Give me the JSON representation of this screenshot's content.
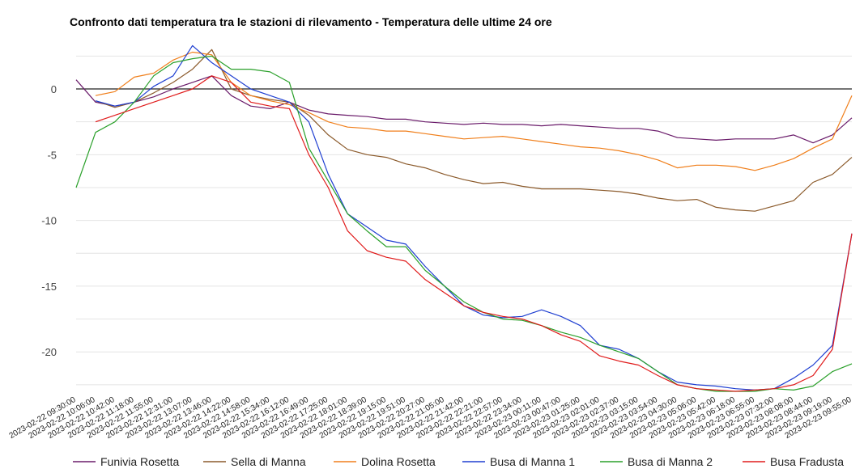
{
  "chart_data": {
    "type": "line",
    "title": "Confronto dati temperatura tra le stazioni di rilevamento - Temperatura delle ultime 24 ore",
    "ylim": [
      -23,
      4
    ],
    "yticks": [
      0,
      -5,
      -10,
      -15,
      -20
    ],
    "grid": true,
    "legend_position": "bottom",
    "x_labels": [
      "2023-02-22 09:30:00",
      "2023-02-22 10:06:00",
      "2023-02-22 10:42:00",
      "2023-02-22 11:18:00",
      "2023-02-22 11:55:00",
      "2023-02-22 12:31:00",
      "2023-02-22 13:07:00",
      "2023-02-22 13:46:00",
      "2023-02-22 14:22:00",
      "2023-02-22 14:58:00",
      "2023-02-22 15:34:00",
      "2023-02-22 16:12:00",
      "2023-02-22 16:49:00",
      "2023-02-22 17:25:00",
      "2023-02-22 18:01:00",
      "2023-02-22 18:39:00",
      "2023-02-22 19:15:00",
      "2023-02-22 19:51:00",
      "2023-02-22 20:27:00",
      "2023-02-22 21:05:00",
      "2023-02-22 21:42:00",
      "2023-02-22 22:21:00",
      "2023-02-22 22:57:00",
      "2023-02-22 23:34:00",
      "2023-02-23 00:11:00",
      "2023-02-23 00:47:00",
      "2023-02-23 01:25:00",
      "2023-02-23 02:01:00",
      "2023-02-23 02:37:00",
      "2023-02-23 03:15:00",
      "2023-02-23 03:54:00",
      "2023-02-23 04:30:00",
      "2023-02-23 05:06:00",
      "2023-02-23 05:42:00",
      "2023-02-23 06:18:00",
      "2023-02-23 06:55:00",
      "2023-02-23 07:32:00",
      "2023-02-23 08:08:00",
      "2023-02-23 08:44:00",
      "2023-02-23 09:19:00",
      "2023-02-23 09:55:00"
    ],
    "series": [
      {
        "name": "Funivia Rosetta",
        "color": "#6a1b6a",
        "values": [
          0.7,
          -1.0,
          -1.3,
          -1.0,
          -0.6,
          0.0,
          0.5,
          1.0,
          -0.5,
          -1.3,
          -1.5,
          -1.0,
          -1.6,
          -1.9,
          -2.0,
          -2.1,
          -2.3,
          -2.3,
          -2.5,
          -2.6,
          -2.7,
          -2.6,
          -2.7,
          -2.7,
          -2.8,
          -2.7,
          -2.8,
          -2.9,
          -3.0,
          -3.0,
          -3.2,
          -3.7,
          -3.8,
          -3.9,
          -3.8,
          -3.8,
          -3.8,
          -3.5,
          -4.1,
          -3.5,
          -2.2
        ]
      },
      {
        "name": "Sella di Manna",
        "color": "#8b5a2b",
        "values": [
          null,
          -0.9,
          -1.4,
          -1.0,
          -0.3,
          0.5,
          1.5,
          3.0,
          0.0,
          -0.5,
          -0.8,
          -1.0,
          -2.0,
          -3.5,
          -4.6,
          -5.0,
          -5.2,
          -5.7,
          -6.0,
          -6.5,
          -6.9,
          -7.2,
          -7.1,
          -7.4,
          -7.6,
          -7.6,
          -7.6,
          -7.7,
          -7.8,
          -8.0,
          -8.3,
          -8.5,
          -8.4,
          -9.0,
          -9.2,
          -9.3,
          -8.9,
          -8.5,
          -7.1,
          -6.5,
          -5.2
        ]
      },
      {
        "name": "Dolina Rosetta",
        "color": "#f07f1b",
        "values": [
          null,
          -0.5,
          -0.2,
          0.9,
          1.2,
          2.2,
          2.8,
          2.6,
          0.5,
          -0.5,
          -0.9,
          -1.2,
          -1.8,
          -2.5,
          -2.9,
          -3.0,
          -3.2,
          -3.2,
          -3.4,
          -3.6,
          -3.8,
          -3.7,
          -3.6,
          -3.8,
          -4.0,
          -4.2,
          -4.4,
          -4.5,
          -4.7,
          -5.0,
          -5.4,
          -6.0,
          -5.8,
          -5.8,
          -5.9,
          -6.2,
          -5.8,
          -5.3,
          -4.5,
          -3.8,
          -0.5
        ]
      },
      {
        "name": "Busa di Manna 1",
        "color": "#1f3fd1",
        "values": [
          null,
          -0.9,
          -1.3,
          -1.0,
          0.2,
          1.0,
          3.3,
          2.0,
          1.0,
          0.0,
          -0.5,
          -1.0,
          -2.5,
          -6.5,
          -9.5,
          -10.5,
          -11.5,
          -11.8,
          -13.5,
          -15.0,
          -16.5,
          -17.2,
          -17.4,
          -17.3,
          -16.8,
          -17.3,
          -18.0,
          -19.5,
          -19.8,
          -20.5,
          -21.5,
          -22.3,
          -22.5,
          -22.6,
          -22.8,
          -22.9,
          -22.8,
          -22.0,
          -21.0,
          -19.5,
          -11.0
        ]
      },
      {
        "name": "Busa di Manna 2",
        "color": "#2aa02a",
        "values": [
          -7.5,
          -3.3,
          -2.5,
          -1.0,
          1.0,
          2.0,
          2.3,
          2.5,
          1.5,
          1.5,
          1.3,
          0.5,
          -4.5,
          -7.0,
          -9.5,
          -10.8,
          -12.0,
          -12.0,
          -13.8,
          -15.0,
          -16.2,
          -17.0,
          -17.5,
          -17.6,
          -18.0,
          -18.5,
          -18.9,
          -19.5,
          -20.0,
          -20.5,
          -21.5,
          -22.5,
          -22.8,
          -23.0,
          -23.0,
          -23.0,
          -22.8,
          -22.9,
          -22.6,
          -21.5,
          -20.9
        ]
      },
      {
        "name": "Busa Fradusta",
        "color": "#e01b1b",
        "values": [
          null,
          -2.5,
          -2.0,
          -1.5,
          -1.0,
          -0.5,
          0.0,
          1.0,
          0.5,
          -1.0,
          -1.3,
          -1.5,
          -5.0,
          -7.5,
          -10.8,
          -12.3,
          -12.8,
          -13.1,
          -14.5,
          -15.5,
          -16.5,
          -17.0,
          -17.3,
          -17.5,
          -18.0,
          -18.7,
          -19.2,
          -20.3,
          -20.7,
          -21.0,
          -21.8,
          -22.5,
          -22.8,
          -22.9,
          -23.0,
          -22.9,
          -22.8,
          -22.5,
          -21.8,
          -19.8,
          -11.0
        ]
      }
    ]
  }
}
